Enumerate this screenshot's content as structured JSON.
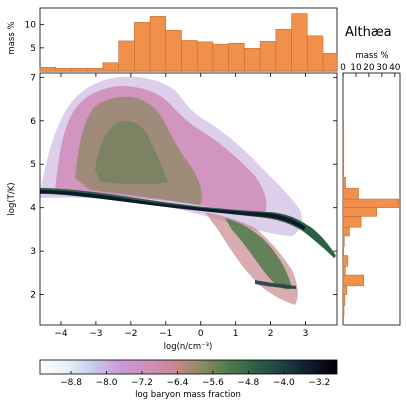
{
  "chart_data": [
    {
      "type": "heatmap",
      "title": "Althæa",
      "xlabel": "log(n/cm⁻³)",
      "ylabel": "log(T/K)",
      "xlim": [
        -4.6,
        3.9
      ],
      "ylim": [
        1.3,
        7.1
      ],
      "x_ticks": [
        "−4",
        "−3",
        "−2",
        "−1",
        "0",
        "1",
        "2",
        "3"
      ],
      "x_tick_values": [
        -4,
        -3,
        -2,
        -1,
        0,
        1,
        2,
        3
      ],
      "y_ticks": [
        "2",
        "3",
        "4",
        "5",
        "6",
        "7"
      ],
      "y_tick_values": [
        2,
        3,
        4,
        5,
        6,
        7
      ],
      "colorbar": {
        "label": "log baryon mass fraction",
        "range": [
          -9.5,
          -2.8
        ],
        "ticks": [
          "−8.8",
          "−8.0",
          "−7.2",
          "−6.4",
          "−5.6",
          "−4.8",
          "−4.0",
          "−3.2"
        ],
        "tick_values": [
          -8.8,
          -8.0,
          -7.2,
          -6.4,
          -5.6,
          -4.8,
          -4.0,
          -3.2
        ],
        "colors": [
          "#ffffff",
          "#e6f0f8",
          "#c7c9ec",
          "#c99ad8",
          "#cf8ebb",
          "#c9898e",
          "#8e8863",
          "#4f7a4a",
          "#2d5f43",
          "#1f3f45",
          "#101a2d",
          "#000000"
        ]
      }
    },
    {
      "type": "bar",
      "name": "density-histogram",
      "ylabel": "mass %",
      "y_ticks": [
        "5",
        "10"
      ],
      "y_tick_values": [
        5,
        10
      ],
      "ylim": [
        0,
        13.6
      ],
      "bin_edges": [
        -4.6,
        -4.15,
        -3.7,
        -3.25,
        -2.8,
        -2.35,
        -1.9,
        -1.45,
        -1.0,
        -0.55,
        -0.1,
        0.35,
        0.8,
        1.25,
        1.7,
        2.15,
        2.6,
        3.05,
        3.5,
        3.9
      ],
      "values": [
        0.8,
        0.6,
        0.6,
        0.6,
        1.8,
        6.5,
        10.5,
        11.8,
        8.8,
        6.6,
        6.3,
        5.8,
        6.0,
        4.9,
        6.4,
        9.0,
        12.4,
        7.6,
        3.8
      ],
      "color": "#f0904a"
    },
    {
      "type": "bar",
      "orientation": "horizontal",
      "name": "temperature-histogram",
      "xlabel": "mass %",
      "x_ticks": [
        "0",
        "10",
        "20",
        "30",
        "40"
      ],
      "x_tick_values": [
        0,
        10,
        20,
        30,
        40
      ],
      "xlim": [
        0,
        44
      ],
      "bin_edges": [
        1.3,
        1.5,
        1.75,
        2.0,
        2.2,
        2.45,
        2.65,
        2.9,
        3.1,
        3.35,
        3.55,
        3.8,
        4.0,
        4.2,
        4.45,
        4.7,
        6.0
      ],
      "values": [
        0.5,
        0.8,
        1.5,
        3.0,
        16.0,
        1.8,
        3.8,
        0.5,
        1.0,
        5.0,
        14.0,
        26.0,
        43.0,
        12.0,
        2.0,
        0.6
      ],
      "color": "#f0904a"
    }
  ]
}
